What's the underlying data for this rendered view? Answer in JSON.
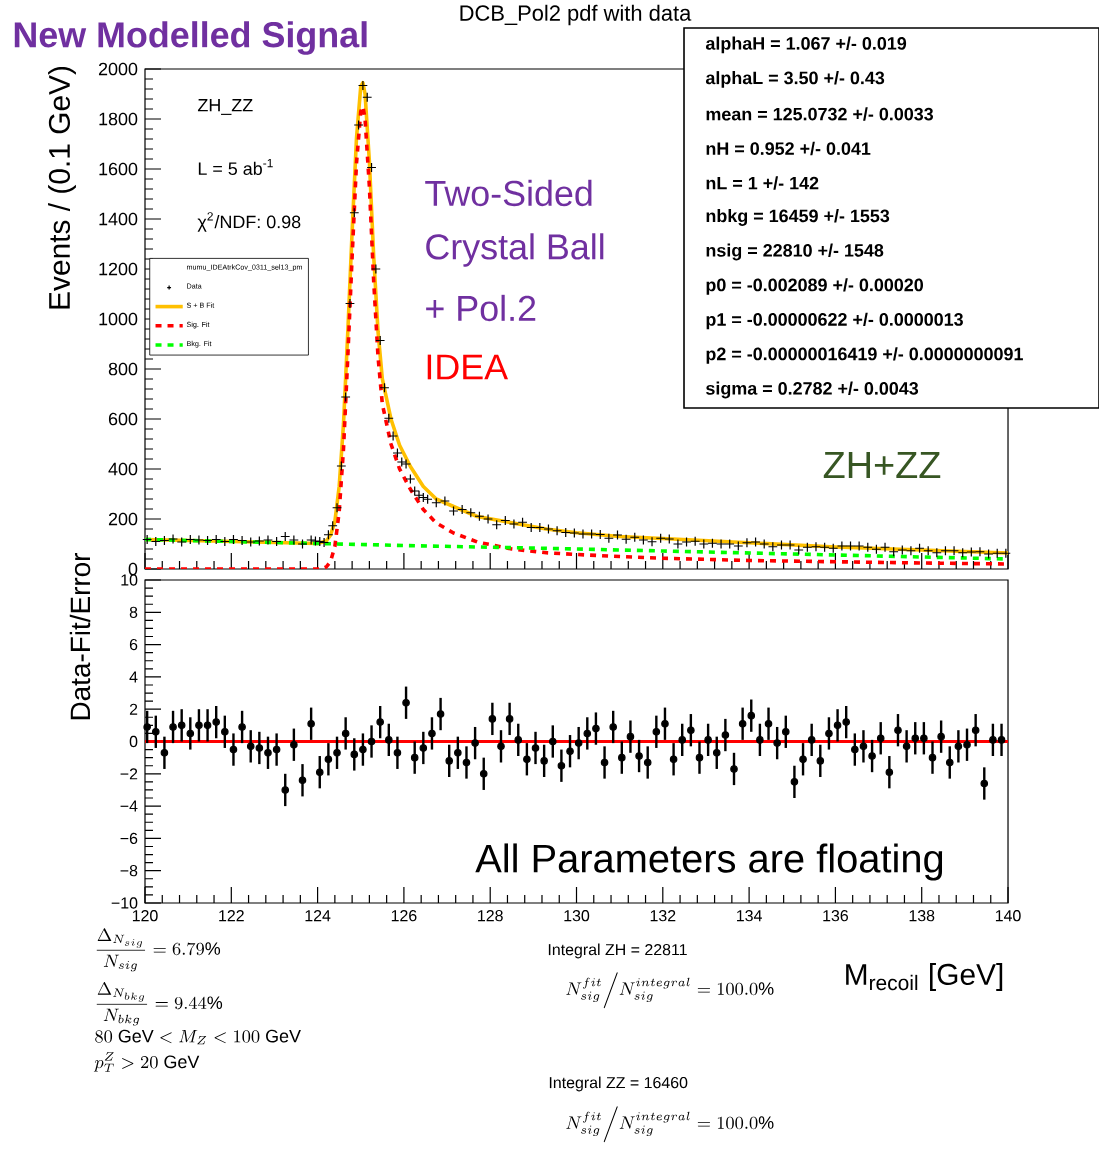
{
  "chart_data": [
    {
      "type": "line",
      "title": "DCB_Pol2 pdf with data",
      "ylabel": "Events / (0.1 GeV)",
      "legend_title": "mumu_IDEAtrkCov_0311_sel13_pm",
      "legend": "left",
      "xlim": [
        120,
        140
      ],
      "xticks": [
        120,
        122,
        124,
        126,
        128,
        130,
        132,
        134,
        136,
        138,
        140
      ],
      "tick_labels": "y",
      "ylim": [
        0,
        2000
      ],
      "yticks": [
        0,
        200,
        400,
        600,
        800,
        1000,
        1200,
        1400,
        1600,
        1800,
        2000
      ],
      "series": [
        {
          "name": "Data",
          "type": "scatter",
          "marker": "cross",
          "color": "#000000",
          "x": [
            120.05,
            120.25,
            120.45,
            120.65,
            120.85,
            121.05,
            121.25,
            121.45,
            121.65,
            121.85,
            122.05,
            122.25,
            122.45,
            122.65,
            122.85,
            123.05,
            123.25,
            123.45,
            123.65,
            123.85,
            123.95,
            124.05,
            124.15,
            124.25,
            124.35,
            124.45,
            124.55,
            124.65,
            124.75,
            124.85,
            124.95,
            125.05,
            125.15,
            125.25,
            125.35,
            125.45,
            125.55,
            125.65,
            125.75,
            125.85,
            125.95,
            126.05,
            126.15,
            126.25,
            126.35,
            126.45,
            126.55,
            126.75,
            126.95,
            127.15,
            127.35,
            127.55,
            127.75,
            127.95,
            128.15,
            128.35,
            128.55,
            128.75,
            128.95,
            129.15,
            129.35,
            129.55,
            129.75,
            129.95,
            130.15,
            130.35,
            130.55,
            130.75,
            130.95,
            131.15,
            131.35,
            131.55,
            131.75,
            131.95,
            132.15,
            132.35,
            132.55,
            132.75,
            132.95,
            133.15,
            133.35,
            133.55,
            133.75,
            133.95,
            134.15,
            134.35,
            134.55,
            134.75,
            134.95,
            135.15,
            135.35,
            135.55,
            135.75,
            135.95,
            136.15,
            136.35,
            136.55,
            136.75,
            136.95,
            137.15,
            137.35,
            137.55,
            137.75,
            137.95,
            138.15,
            138.35,
            138.55,
            138.75,
            138.95,
            139.15,
            139.35,
            139.55,
            139.75,
            139.95
          ],
          "values": [
            118,
            110,
            114,
            120,
            108,
            118,
            116,
            114,
            118,
            110,
            118,
            114,
            108,
            112,
            116,
            110,
            130,
            116,
            100,
            116,
            112,
            110,
            106,
            137,
            173,
            245,
            412,
            688,
            1062,
            1425,
            1776,
            1934,
            1887,
            1606,
            1200,
            914,
            725,
            603,
            532,
            464,
            428,
            420,
            360,
            312,
            295,
            286,
            279,
            265,
            272,
            232,
            238,
            225,
            211,
            200,
            177,
            194,
            180,
            187,
            166,
            166,
            160,
            153,
            146,
            144,
            140,
            140,
            138,
            123,
            136,
            119,
            127,
            116,
            109,
            123,
            120,
            100,
            108,
            111,
            100,
            103,
            100,
            100,
            92,
            105,
            108,
            100,
            89,
            96,
            96,
            76,
            87,
            89,
            87,
            83,
            92,
            92,
            92,
            87,
            79,
            87,
            69,
            76,
            73,
            83,
            73,
            65,
            73,
            73,
            65,
            68,
            69,
            60,
            63,
            63
          ]
        },
        {
          "name": "S + B Fit",
          "type": "line",
          "line_style": "solid",
          "color": "#ffc000",
          "x": [
            120,
            124,
            124.2,
            124.3,
            124.4,
            124.5,
            124.6,
            124.7,
            124.8,
            124.9,
            125.0,
            125.05,
            125.1,
            125.2,
            125.3,
            125.4,
            125.5,
            125.7,
            125.9,
            126.15,
            126.45,
            126.75,
            127.15,
            127.7,
            128.5,
            129.3,
            130,
            131,
            132,
            134,
            136,
            138,
            140
          ],
          "values": [
            118,
            102,
            112,
            135,
            190,
            330,
            580,
            950,
            1350,
            1720,
            1930,
            1945,
            1900,
            1630,
            1250,
            950,
            760,
            600,
            495,
            410,
            330,
            280,
            250,
            210,
            185,
            160,
            145,
            130,
            122,
            105,
            88,
            76,
            64
          ]
        },
        {
          "name": "Sig. Fit",
          "type": "line",
          "line_style": "dashed",
          "color": "#ff0000",
          "x": [
            120,
            124.1,
            124.2,
            124.3,
            124.4,
            124.5,
            124.6,
            124.7,
            124.8,
            124.9,
            125.0,
            125.05,
            125.1,
            125.2,
            125.3,
            125.4,
            125.5,
            125.7,
            125.9,
            126.15,
            126.45,
            126.75,
            127.15,
            127.7,
            128.5,
            129.3,
            130,
            131,
            132,
            134,
            136,
            138,
            140
          ],
          "values": [
            0,
            0,
            8,
            30,
            90,
            230,
            480,
            850,
            1250,
            1620,
            1830,
            1850,
            1800,
            1530,
            1150,
            850,
            660,
            500,
            400,
            319,
            238,
            184,
            144,
            108,
            80,
            65,
            58,
            50,
            43,
            34,
            29,
            24,
            20
          ]
        },
        {
          "name": "Bkg. Fit",
          "type": "line",
          "line_style": "dashed",
          "color": "#00ff00",
          "x": [
            120,
            122,
            124,
            126,
            128,
            130,
            132,
            134,
            136,
            138,
            140
          ],
          "values": [
            118,
            110,
            102,
            94,
            87,
            80,
            72,
            64,
            56,
            48,
            40
          ]
        }
      ],
      "annotations": [
        "New Modelled Signal",
        "ZH_ZZ",
        "L = 5 ab$^{-1}$",
        "χ$^{2}$/NDF: 0.98",
        "Two-Sided",
        "Crystal Ball",
        "+ Pol.2",
        "IDEA",
        "ZH+ZZ",
        "alphaH = 1.067 +/- 0.019",
        "alphaL = 3.50 +/- 0.43",
        "mean = 125.0732 +/- 0.0033",
        "nH = 0.952 +/- 0.041",
        "nL = 1 +/- 142",
        "nbkg = 16459 +/- 1553",
        "nsig = 22810 +/- 1548",
        "p0 = -0.002089 +/- 0.00020",
        "p1 = -0.00000622 +/- 0.0000013",
        "p2 = -0.00000016419 +/- 0.0000000091",
        "sigma = 0.2782 +/- 0.0043"
      ]
    },
    {
      "type": "scatter",
      "xlabel": "M$_{recoil}$ [GeV]",
      "ylabel": "Data-Fit/Error",
      "marker": "circle",
      "color": "#000000",
      "xlim": [
        120,
        140
      ],
      "xticks": [
        120,
        122,
        124,
        126,
        128,
        130,
        132,
        134,
        136,
        138,
        140
      ],
      "ylim": [
        -10,
        10
      ],
      "yticks": [
        {
          "value": -10,
          "label": "−10"
        },
        {
          "value": -8,
          "label": "−8"
        },
        {
          "value": -6,
          "label": "−6"
        },
        {
          "value": -4,
          "label": "−4"
        },
        {
          "value": -2,
          "label": "−2"
        },
        0,
        2,
        4,
        6,
        8,
        10
      ],
      "x": [
        120.05,
        120.25,
        120.45,
        120.65,
        120.85,
        121.05,
        121.25,
        121.45,
        121.65,
        121.85,
        122.05,
        122.25,
        122.45,
        122.65,
        122.85,
        123.05,
        123.25,
        123.45,
        123.65,
        123.85,
        124.05,
        124.25,
        124.45,
        124.65,
        124.85,
        125.05,
        125.25,
        125.45,
        125.65,
        125.85,
        126.05,
        126.25,
        126.45,
        126.65,
        126.85,
        127.05,
        127.25,
        127.45,
        127.65,
        127.85,
        128.05,
        128.25,
        128.45,
        128.65,
        128.85,
        129.05,
        129.25,
        129.45,
        129.65,
        129.85,
        130.05,
        130.25,
        130.45,
        130.65,
        130.85,
        131.05,
        131.25,
        131.45,
        131.65,
        131.85,
        132.05,
        132.25,
        132.45,
        132.65,
        132.85,
        133.05,
        133.25,
        133.45,
        133.65,
        133.85,
        134.05,
        134.25,
        134.45,
        134.65,
        134.85,
        135.05,
        135.25,
        135.45,
        135.65,
        135.85,
        136.05,
        136.25,
        136.45,
        136.65,
        136.85,
        137.05,
        137.25,
        137.45,
        137.65,
        137.85,
        138.05,
        138.25,
        138.45,
        138.65,
        138.85,
        139.05,
        139.25,
        139.45,
        139.65,
        139.85
      ],
      "values": [
        0.9,
        0.6,
        -0.7,
        0.9,
        1.0,
        0.5,
        1.0,
        1.0,
        1.2,
        0.6,
        -0.5,
        0.9,
        -0.3,
        -0.4,
        -0.7,
        -0.5,
        -3.0,
        -0.2,
        -2.4,
        1.1,
        -1.9,
        -1.1,
        -0.7,
        0.5,
        -0.8,
        -0.5,
        0.0,
        1.2,
        0.1,
        -0.7,
        2.4,
        -1.0,
        -0.4,
        0.5,
        1.7,
        -1.2,
        -0.7,
        -1.3,
        -0.1,
        -2.0,
        1.4,
        -0.3,
        1.4,
        0.1,
        -1.1,
        -0.4,
        -1.2,
        0.0,
        -1.5,
        -0.6,
        -0.1,
        0.5,
        0.8,
        -1.3,
        0.9,
        -1.0,
        0.3,
        -0.9,
        -1.3,
        0.6,
        1.1,
        -1.1,
        0.1,
        0.7,
        -1.0,
        0.1,
        -0.7,
        0.4,
        -1.7,
        1.1,
        1.6,
        0.1,
        1.1,
        -0.1,
        0.6,
        -2.5,
        -1.1,
        0.1,
        -1.2,
        0.5,
        1.0,
        1.2,
        -0.5,
        -0.3,
        -0.9,
        0.2,
        -1.9,
        0.7,
        -0.3,
        0.2,
        0.2,
        -1.0,
        0.3,
        -1.3,
        -0.3,
        -0.2,
        0.7,
        -2.6,
        0.1,
        0.1
      ],
      "errors": [
        1,
        1,
        1,
        1,
        1,
        1,
        1,
        1,
        1,
        1,
        1,
        1,
        1,
        1,
        1,
        1,
        1,
        1,
        1,
        1,
        1,
        1,
        1,
        1,
        1,
        1,
        1,
        1,
        1,
        1,
        1,
        1,
        1,
        1,
        1,
        1,
        1,
        1,
        1,
        1,
        1,
        1,
        1,
        1,
        1,
        1,
        1,
        1,
        1,
        1,
        1,
        1,
        1,
        1,
        1,
        1,
        1,
        1,
        1,
        1,
        1,
        1,
        1,
        1,
        1,
        1,
        1,
        1,
        1,
        1,
        1,
        1,
        1,
        1,
        1,
        1,
        1,
        1,
        1,
        1,
        1,
        1,
        1,
        1,
        1,
        1,
        1,
        1,
        1,
        1,
        1,
        1,
        1,
        1,
        1,
        1,
        1,
        1,
        1,
        1
      ],
      "ref_lines": [
        {
          "axis": "y",
          "value": 0,
          "color": "#ff0000"
        }
      ],
      "annotations": [
        "All Parameters are floating",
        "\\frac{\\Delta_{N_{sig}}}{N_{sig}} = 6.79\\%",
        "\\frac{\\Delta_{N_{bkg}}}{N_{bkg}} = 9.44\\%",
        "80\\ \\mathrm{GeV} < M_Z < 100\\ \\mathrm{GeV}",
        "p_T^Z > 20\\ \\mathrm{GeV}",
        "Integral ZH = 22811",
        "N_{sig}^{fit}\\Big/N_{sig}^{integral} = 100.0\\%",
        "Integral ZZ = 16460",
        "N_{sig}^{fit}\\Big/N_{sig}^{integral} = 100.0\\%"
      ]
    }
  ]
}
